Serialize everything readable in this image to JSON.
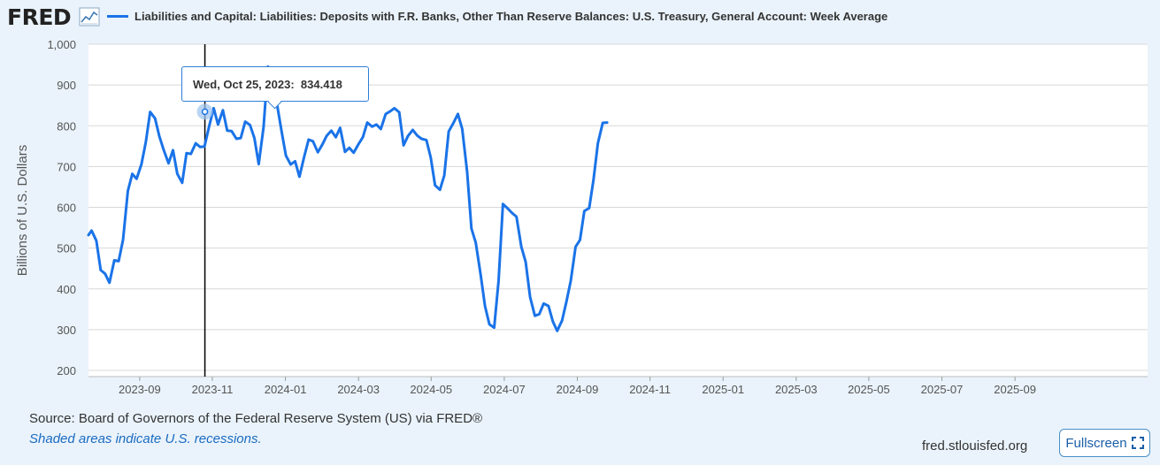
{
  "header": {
    "logo": "FRED",
    "title": "Liabilities and Capital: Liabilities: Deposits with F.R. Banks, Other Than Reserve Balances: U.S. Treasury, General Account: Week Average"
  },
  "tooltip": {
    "date": "Wed, Oct 25, 2023:",
    "value": "834.418"
  },
  "footer": {
    "source": "Source: Board of Governors of the Federal Reserve System (US) via FRED®",
    "recession_note": "Shaded areas indicate U.S. recessions.",
    "url": "fred.stlouisfed.org",
    "fullscreen_label": "Fullscreen"
  },
  "colors": {
    "line": "#1a73e8",
    "grid": "#d8d8d8",
    "background": "#eaf3fb"
  },
  "chart_data": {
    "type": "line",
    "ylabel": "Billions of U.S. Dollars",
    "ylim": [
      200,
      1000
    ],
    "yticks": [
      200,
      300,
      400,
      500,
      600,
      700,
      800,
      900,
      1000
    ],
    "ytick_labels": [
      "200",
      "300",
      "400",
      "500",
      "600",
      "700",
      "800",
      "900",
      "1,000"
    ],
    "xlim_months": [
      2023.55,
      2025.97
    ],
    "xticks": [
      {
        "label": "2023-09",
        "t": 2023.667
      },
      {
        "label": "2023-11",
        "t": 2023.833
      },
      {
        "label": "2024-01",
        "t": 2024.0
      },
      {
        "label": "2024-03",
        "t": 2024.167
      },
      {
        "label": "2024-05",
        "t": 2024.333
      },
      {
        "label": "2024-07",
        "t": 2024.5
      },
      {
        "label": "2024-09",
        "t": 2024.667
      },
      {
        "label": "2024-11",
        "t": 2024.833
      },
      {
        "label": "2025-01",
        "t": 2025.0
      },
      {
        "label": "2025-03",
        "t": 2025.167
      },
      {
        "label": "2025-05",
        "t": 2025.333
      },
      {
        "label": "2025-07",
        "t": 2025.5
      },
      {
        "label": "2025-09",
        "t": 2025.667
      }
    ],
    "highlight": {
      "t": 2023.816,
      "value": 834.418
    },
    "series": [
      {
        "name": "Liabilities and Capital: Liabilities: Deposits with F.R. Banks, Other Than Reserve Balances: U.S. Treasury, General Account: Week Average",
        "points": [
          [
            2023.55,
            532
          ],
          [
            2023.557,
            543
          ],
          [
            2023.568,
            518
          ],
          [
            2023.578,
            446
          ],
          [
            2023.588,
            437
          ],
          [
            2023.598,
            415
          ],
          [
            2023.609,
            470
          ],
          [
            2023.619,
            468
          ],
          [
            2023.629,
            521
          ],
          [
            2023.64,
            640
          ],
          [
            2023.65,
            682
          ],
          [
            2023.66,
            670
          ],
          [
            2023.671,
            706
          ],
          [
            2023.681,
            760
          ],
          [
            2023.691,
            834
          ],
          [
            2023.702,
            818
          ],
          [
            2023.712,
            774
          ],
          [
            2023.722,
            740
          ],
          [
            2023.733,
            708
          ],
          [
            2023.743,
            740
          ],
          [
            2023.753,
            682
          ],
          [
            2023.764,
            660
          ],
          [
            2023.774,
            733
          ],
          [
            2023.784,
            731
          ],
          [
            2023.795,
            757
          ],
          [
            2023.805,
            748
          ],
          [
            2023.815,
            749
          ],
          [
            2023.826,
            800
          ],
          [
            2023.836,
            843
          ],
          [
            2023.846,
            803
          ],
          [
            2023.857,
            838
          ],
          [
            2023.867,
            788
          ],
          [
            2023.877,
            787
          ],
          [
            2023.888,
            768
          ],
          [
            2023.898,
            770
          ],
          [
            2023.908,
            810
          ],
          [
            2023.919,
            802
          ],
          [
            2023.929,
            770
          ],
          [
            2023.939,
            706
          ],
          [
            2023.95,
            797
          ],
          [
            2023.96,
            945
          ],
          [
            2023.97,
            918
          ],
          [
            2023.981,
            851
          ],
          [
            2023.991,
            788
          ],
          [
            2024.001,
            727
          ],
          [
            2024.012,
            705
          ],
          [
            2024.022,
            713
          ],
          [
            2024.032,
            675
          ],
          [
            2024.043,
            725
          ],
          [
            2024.053,
            766
          ],
          [
            2024.063,
            762
          ],
          [
            2024.074,
            735
          ],
          [
            2024.084,
            753
          ],
          [
            2024.094,
            775
          ],
          [
            2024.105,
            788
          ],
          [
            2024.115,
            772
          ],
          [
            2024.125,
            795
          ],
          [
            2024.136,
            736
          ],
          [
            2024.146,
            746
          ],
          [
            2024.156,
            734
          ],
          [
            2024.167,
            755
          ],
          [
            2024.177,
            772
          ],
          [
            2024.187,
            808
          ],
          [
            2024.198,
            798
          ],
          [
            2024.208,
            803
          ],
          [
            2024.218,
            792
          ],
          [
            2024.229,
            829
          ],
          [
            2024.239,
            835
          ],
          [
            2024.249,
            843
          ],
          [
            2024.26,
            833
          ],
          [
            2024.27,
            752
          ],
          [
            2024.28,
            775
          ],
          [
            2024.291,
            790
          ],
          [
            2024.301,
            776
          ],
          [
            2024.311,
            768
          ],
          [
            2024.322,
            765
          ],
          [
            2024.332,
            722
          ],
          [
            2024.342,
            654
          ],
          [
            2024.353,
            643
          ],
          [
            2024.363,
            678
          ],
          [
            2024.373,
            786
          ],
          [
            2024.384,
            807
          ],
          [
            2024.394,
            829
          ],
          [
            2024.404,
            792
          ],
          [
            2024.415,
            688
          ],
          [
            2024.425,
            548
          ],
          [
            2024.435,
            513
          ],
          [
            2024.446,
            435
          ],
          [
            2024.456,
            358
          ],
          [
            2024.466,
            313
          ],
          [
            2024.477,
            305
          ],
          [
            2024.487,
            420
          ],
          [
            2024.497,
            608
          ],
          [
            2024.508,
            597
          ],
          [
            2024.518,
            586
          ],
          [
            2024.528,
            577
          ],
          [
            2024.539,
            503
          ],
          [
            2024.549,
            466
          ],
          [
            2024.559,
            380
          ],
          [
            2024.57,
            334
          ],
          [
            2024.58,
            338
          ],
          [
            2024.59,
            364
          ],
          [
            2024.601,
            358
          ],
          [
            2024.611,
            320
          ],
          [
            2024.621,
            297
          ],
          [
            2024.632,
            322
          ],
          [
            2024.642,
            368
          ],
          [
            2024.652,
            420
          ],
          [
            2024.663,
            503
          ],
          [
            2024.673,
            520
          ],
          [
            2024.683,
            591
          ],
          [
            2024.694,
            598
          ],
          [
            2024.704,
            668
          ],
          [
            2024.714,
            757
          ],
          [
            2024.725,
            807
          ],
          [
            2024.735,
            808
          ]
        ]
      }
    ]
  }
}
